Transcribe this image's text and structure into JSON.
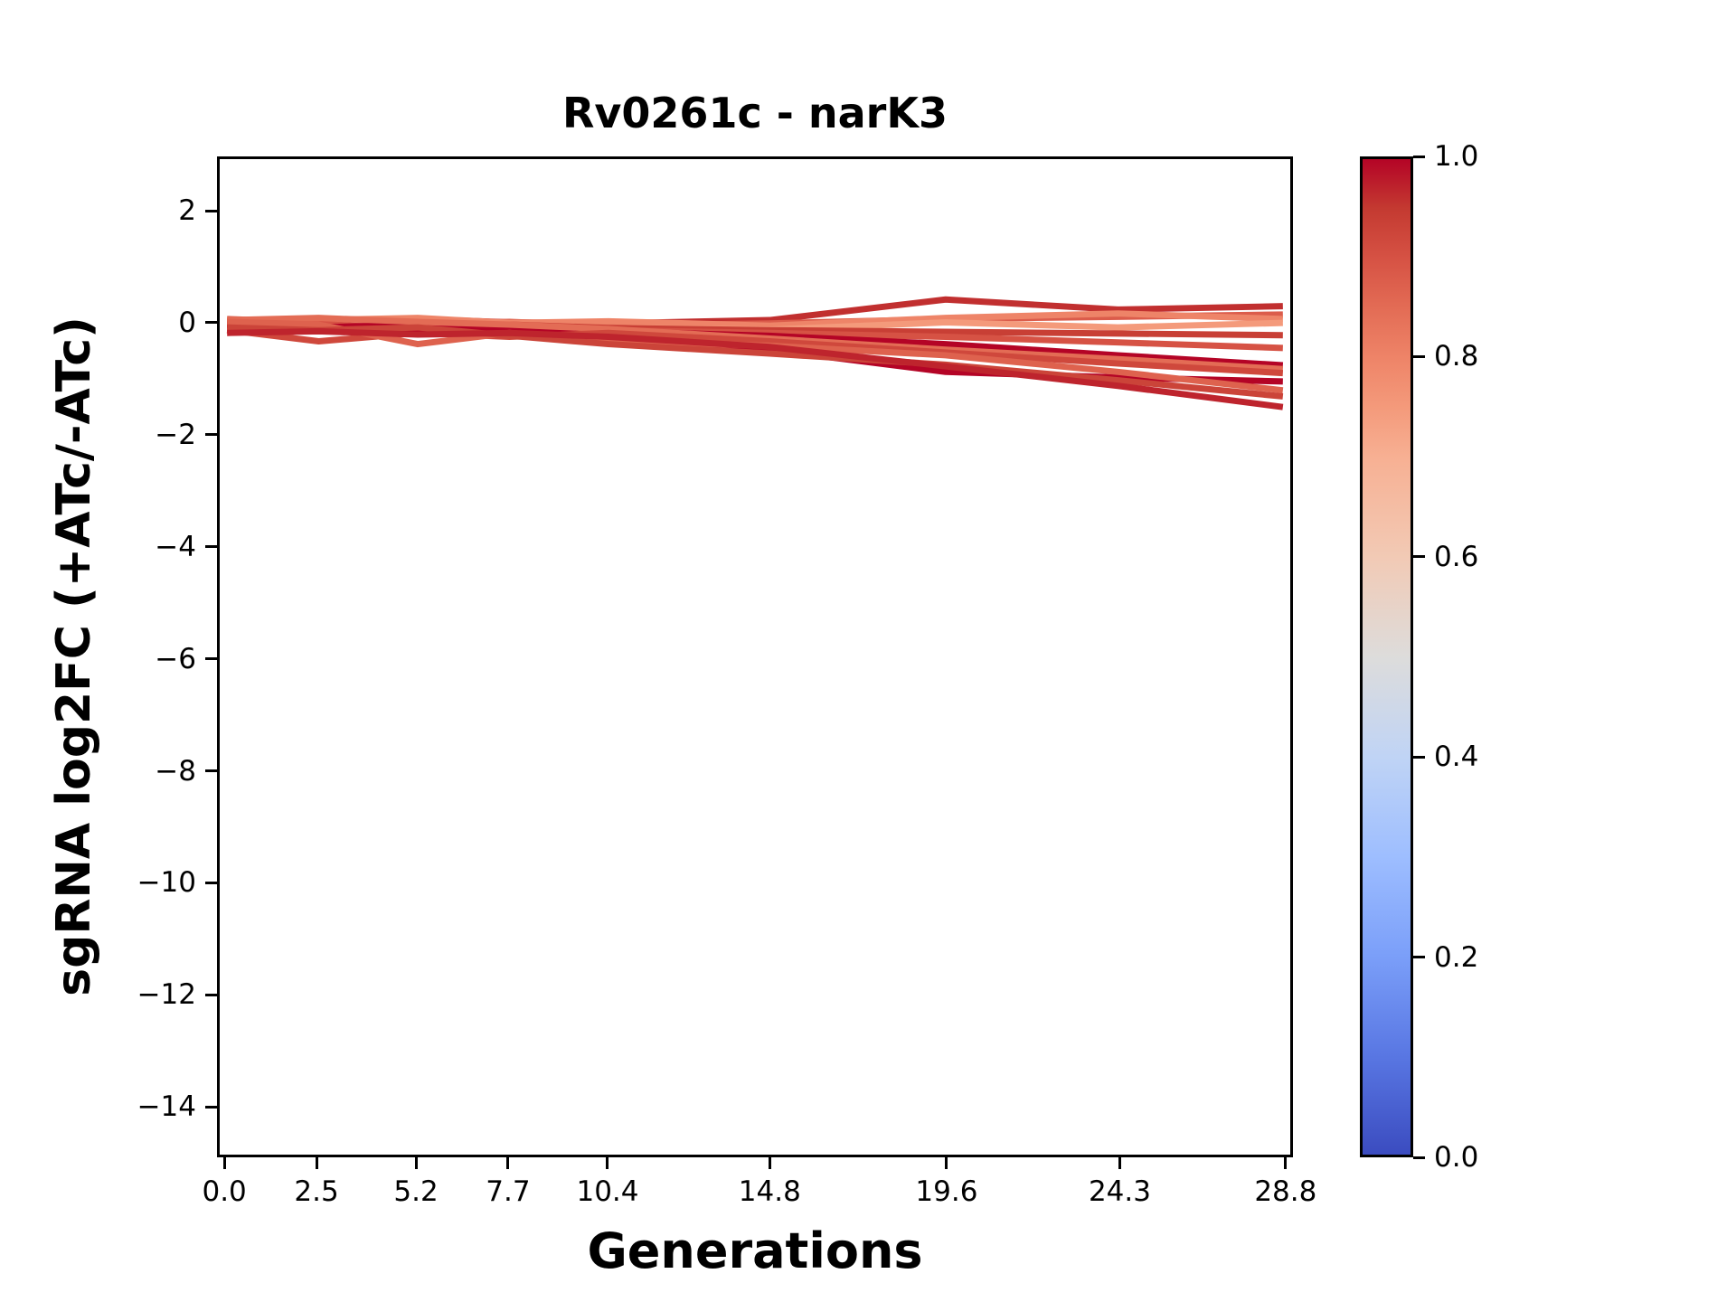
{
  "figure": {
    "title": "Rv0261c - narK3",
    "xlabel": "Generations",
    "ylabel": "sgRNA log2FC (+ATc/-ATc)"
  },
  "chart_data": {
    "type": "line",
    "title": "Rv0261c - narK3",
    "xlabel": "Generations",
    "ylabel": "sgRNA log2FC (+ATc/-ATc)",
    "grid": false,
    "x": [
      0.0,
      2.5,
      5.2,
      7.7,
      10.4,
      14.8,
      19.6,
      24.3,
      28.8
    ],
    "xtick_labels": [
      "0.0",
      "2.5",
      "5.2",
      "7.7",
      "10.4",
      "14.8",
      "19.6",
      "24.3",
      "28.8"
    ],
    "ytick_values": [
      2,
      0,
      -2,
      -4,
      -6,
      -8,
      -10,
      -12,
      -14
    ],
    "ytick_labels": [
      "2",
      "0",
      "−2",
      "−4",
      "−6",
      "−8",
      "−10",
      "−12",
      "−14"
    ],
    "xlim": [
      -0.2,
      29.0
    ],
    "ylim": [
      -14.9,
      2.97
    ],
    "line_width": 7,
    "series": [
      {
        "id": "trace-1",
        "color_value": 0.96,
        "y": [
          0.05,
          0.08,
          0.1,
          0.04,
          0.02,
          0.08,
          0.45,
          0.27,
          0.33
        ]
      },
      {
        "id": "trace-2",
        "color_value": 0.88,
        "y": [
          0.1,
          0.04,
          0.0,
          0.05,
          -0.02,
          0.02,
          0.1,
          0.14,
          0.18
        ]
      },
      {
        "id": "trace-3",
        "color_value": 0.8,
        "y": [
          0.02,
          0.08,
          0.12,
          0.03,
          0.06,
          -0.02,
          0.12,
          0.2,
          0.1
        ]
      },
      {
        "id": "trace-4",
        "color_value": 0.75,
        "y": [
          -0.05,
          0.0,
          0.05,
          -0.03,
          -0.06,
          -0.09,
          0.04,
          -0.05,
          0.03
        ]
      },
      {
        "id": "trace-5",
        "color_value": 0.94,
        "y": [
          0.06,
          -0.02,
          -0.05,
          0.0,
          -0.06,
          -0.1,
          -0.13,
          -0.16,
          -0.19
        ]
      },
      {
        "id": "trace-6",
        "color_value": 0.9,
        "y": [
          0.0,
          0.02,
          -0.1,
          -0.05,
          -0.1,
          -0.15,
          -0.22,
          -0.32,
          -0.42
        ]
      },
      {
        "id": "trace-7",
        "color_value": 1.0,
        "y": [
          -0.02,
          -0.05,
          0.0,
          -0.08,
          -0.12,
          -0.2,
          -0.35,
          -0.55,
          -0.73
        ]
      },
      {
        "id": "trace-8",
        "color_value": 0.85,
        "y": [
          0.08,
          0.12,
          0.05,
          0.0,
          -0.08,
          -0.25,
          -0.45,
          -0.62,
          -0.8
        ]
      },
      {
        "id": "trace-9",
        "color_value": 0.92,
        "y": [
          -0.1,
          -0.3,
          -0.15,
          -0.22,
          -0.15,
          -0.3,
          -0.5,
          -0.7,
          -0.87
        ]
      },
      {
        "id": "trace-10",
        "color_value": 1.0,
        "y": [
          0.0,
          -0.05,
          -0.1,
          -0.15,
          -0.25,
          -0.45,
          -0.85,
          -0.95,
          -1.02
        ]
      },
      {
        "id": "trace-11",
        "color_value": 0.87,
        "y": [
          0.05,
          0.0,
          -0.35,
          -0.15,
          -0.3,
          -0.38,
          -0.55,
          -0.85,
          -1.18
        ]
      },
      {
        "id": "trace-12",
        "color_value": 0.93,
        "y": [
          -0.05,
          -0.1,
          -0.05,
          -0.2,
          -0.35,
          -0.52,
          -0.72,
          -1.0,
          -1.29
        ]
      },
      {
        "id": "trace-13",
        "color_value": 0.97,
        "y": [
          -0.15,
          -0.12,
          -0.18,
          -0.15,
          -0.22,
          -0.4,
          -0.75,
          -1.1,
          -1.48
        ]
      }
    ],
    "colorbar": {
      "vmin": 0.0,
      "vmax": 1.0,
      "tick_values": [
        1.0,
        0.8,
        0.6,
        0.4,
        0.2,
        0.0
      ],
      "tick_labels": [
        "1.0",
        "0.8",
        "0.6",
        "0.4",
        "0.2",
        "0.0"
      ],
      "colormap": "coolwarm",
      "stops": [
        [
          0.0,
          "#3b4cc0"
        ],
        [
          0.1,
          "#5977e3"
        ],
        [
          0.2,
          "#7b9ff9"
        ],
        [
          0.3,
          "#9ebeff"
        ],
        [
          0.4,
          "#c0d4f5"
        ],
        [
          0.5,
          "#dddcdb"
        ],
        [
          0.6,
          "#f2cab5"
        ],
        [
          0.7,
          "#f7b093"
        ],
        [
          0.75,
          "#f49a7b"
        ],
        [
          0.8,
          "#ee8468"
        ],
        [
          0.85,
          "#e36c55"
        ],
        [
          0.9,
          "#d65244"
        ],
        [
          0.95,
          "#c43a31"
        ],
        [
          1.0,
          "#b40426"
        ]
      ]
    }
  }
}
